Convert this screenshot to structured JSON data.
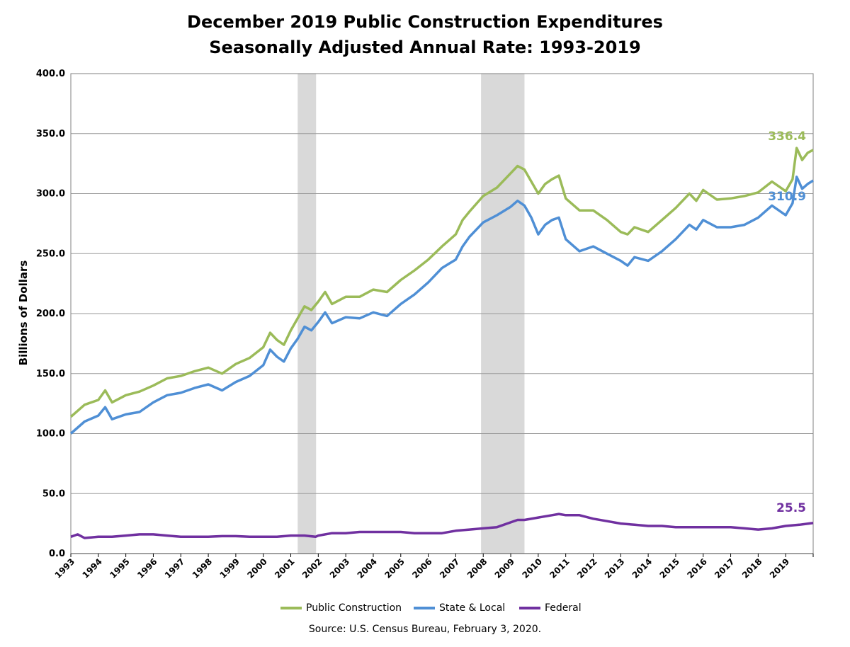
{
  "title_line1": "December 2019 Public Construction Expenditures",
  "title_line2": "Seasonally Adjusted Annual Rate: 1993-2019",
  "source": "Source: U.S. Census Bureau, February 3, 2020.",
  "colors": {
    "public_construction": "#9bbb59",
    "state_local": "#4f8fd5",
    "federal": "#7030a0",
    "recession": "#d9d9d9",
    "grid": "#9a9a9a"
  },
  "chart_data": {
    "type": "line",
    "ylabel": "Billions of Dollars",
    "xlabel": "",
    "ylim": [
      0,
      400
    ],
    "xlim": [
      1993,
      2020
    ],
    "yticks": [
      "0.0",
      "50.0",
      "100.0",
      "150.0",
      "200.0",
      "250.0",
      "300.0",
      "350.0",
      "400.0"
    ],
    "xticks": [
      "1993",
      "1994",
      "1995",
      "1996",
      "1997",
      "1998",
      "1999",
      "2000",
      "2001",
      "2002",
      "2003",
      "2004",
      "2005",
      "2006",
      "2007",
      "2008",
      "2009",
      "2010",
      "2011",
      "2012",
      "2013",
      "2014",
      "2015",
      "2016",
      "2017",
      "2018",
      "2019"
    ],
    "grid": true,
    "legend_position": "bottom",
    "recessions": [
      {
        "start": 2001.25,
        "end": 2001.92
      },
      {
        "start": 2007.92,
        "end": 2009.5
      }
    ],
    "series": [
      {
        "name": "Public Construction",
        "color_key": "public_construction",
        "end_label": "336.4",
        "points": [
          [
            1993.0,
            114
          ],
          [
            1993.5,
            124
          ],
          [
            1994.0,
            128
          ],
          [
            1994.25,
            136
          ],
          [
            1994.5,
            126
          ],
          [
            1995.0,
            132
          ],
          [
            1995.5,
            135
          ],
          [
            1996.0,
            140
          ],
          [
            1996.5,
            146
          ],
          [
            1997.0,
            148
          ],
          [
            1997.5,
            152
          ],
          [
            1998.0,
            155
          ],
          [
            1998.5,
            150
          ],
          [
            1999.0,
            158
          ],
          [
            1999.5,
            163
          ],
          [
            2000.0,
            172
          ],
          [
            2000.25,
            184
          ],
          [
            2000.5,
            178
          ],
          [
            2000.75,
            174
          ],
          [
            2001.0,
            186
          ],
          [
            2001.25,
            196
          ],
          [
            2001.5,
            206
          ],
          [
            2001.75,
            203
          ],
          [
            2002.0,
            210
          ],
          [
            2002.25,
            218
          ],
          [
            2002.5,
            208
          ],
          [
            2003.0,
            214
          ],
          [
            2003.5,
            214
          ],
          [
            2004.0,
            220
          ],
          [
            2004.5,
            218
          ],
          [
            2005.0,
            228
          ],
          [
            2005.5,
            236
          ],
          [
            2006.0,
            245
          ],
          [
            2006.5,
            256
          ],
          [
            2007.0,
            266
          ],
          [
            2007.25,
            278
          ],
          [
            2007.5,
            285
          ],
          [
            2008.0,
            298
          ],
          [
            2008.5,
            305
          ],
          [
            2009.0,
            317
          ],
          [
            2009.25,
            323
          ],
          [
            2009.5,
            320
          ],
          [
            2009.75,
            310
          ],
          [
            2010.0,
            300
          ],
          [
            2010.25,
            308
          ],
          [
            2010.5,
            312
          ],
          [
            2010.75,
            315
          ],
          [
            2011.0,
            296
          ],
          [
            2011.5,
            286
          ],
          [
            2012.0,
            286
          ],
          [
            2012.5,
            278
          ],
          [
            2013.0,
            268
          ],
          [
            2013.25,
            266
          ],
          [
            2013.5,
            272
          ],
          [
            2014.0,
            268
          ],
          [
            2014.5,
            278
          ],
          [
            2015.0,
            288
          ],
          [
            2015.5,
            300
          ],
          [
            2015.75,
            294
          ],
          [
            2016.0,
            303
          ],
          [
            2016.5,
            295
          ],
          [
            2017.0,
            296
          ],
          [
            2017.5,
            298
          ],
          [
            2018.0,
            301
          ],
          [
            2018.5,
            310
          ],
          [
            2019.0,
            302
          ],
          [
            2019.25,
            312
          ],
          [
            2019.4,
            338
          ],
          [
            2019.6,
            328
          ],
          [
            2019.8,
            334
          ],
          [
            2020.0,
            336.4
          ]
        ]
      },
      {
        "name": "State & Local",
        "color_key": "state_local",
        "end_label": "310.9",
        "points": [
          [
            1993.0,
            100
          ],
          [
            1993.5,
            110
          ],
          [
            1994.0,
            115
          ],
          [
            1994.25,
            122
          ],
          [
            1994.5,
            112
          ],
          [
            1995.0,
            116
          ],
          [
            1995.5,
            118
          ],
          [
            1996.0,
            126
          ],
          [
            1996.5,
            132
          ],
          [
            1997.0,
            134
          ],
          [
            1997.5,
            138
          ],
          [
            1998.0,
            141
          ],
          [
            1998.5,
            136
          ],
          [
            1999.0,
            143
          ],
          [
            1999.5,
            148
          ],
          [
            2000.0,
            157
          ],
          [
            2000.25,
            170
          ],
          [
            2000.5,
            164
          ],
          [
            2000.75,
            160
          ],
          [
            2001.0,
            171
          ],
          [
            2001.25,
            179
          ],
          [
            2001.5,
            189
          ],
          [
            2001.75,
            186
          ],
          [
            2002.0,
            193
          ],
          [
            2002.25,
            201
          ],
          [
            2002.5,
            192
          ],
          [
            2003.0,
            197
          ],
          [
            2003.5,
            196
          ],
          [
            2004.0,
            201
          ],
          [
            2004.5,
            198
          ],
          [
            2005.0,
            208
          ],
          [
            2005.5,
            216
          ],
          [
            2006.0,
            226
          ],
          [
            2006.5,
            238
          ],
          [
            2007.0,
            245
          ],
          [
            2007.25,
            256
          ],
          [
            2007.5,
            264
          ],
          [
            2008.0,
            276
          ],
          [
            2008.5,
            282
          ],
          [
            2009.0,
            289
          ],
          [
            2009.25,
            294
          ],
          [
            2009.5,
            290
          ],
          [
            2009.75,
            280
          ],
          [
            2010.0,
            266
          ],
          [
            2010.25,
            274
          ],
          [
            2010.5,
            278
          ],
          [
            2010.75,
            280
          ],
          [
            2011.0,
            262
          ],
          [
            2011.5,
            252
          ],
          [
            2012.0,
            256
          ],
          [
            2012.5,
            250
          ],
          [
            2013.0,
            244
          ],
          [
            2013.25,
            240
          ],
          [
            2013.5,
            247
          ],
          [
            2014.0,
            244
          ],
          [
            2014.5,
            252
          ],
          [
            2015.0,
            262
          ],
          [
            2015.5,
            274
          ],
          [
            2015.75,
            270
          ],
          [
            2016.0,
            278
          ],
          [
            2016.5,
            272
          ],
          [
            2017.0,
            272
          ],
          [
            2017.5,
            274
          ],
          [
            2018.0,
            280
          ],
          [
            2018.5,
            290
          ],
          [
            2019.0,
            282
          ],
          [
            2019.25,
            292
          ],
          [
            2019.4,
            314
          ],
          [
            2019.6,
            304
          ],
          [
            2019.8,
            308
          ],
          [
            2020.0,
            310.9
          ]
        ]
      },
      {
        "name": "Federal",
        "color_key": "federal",
        "end_label": "25.5",
        "points": [
          [
            1993.0,
            14
          ],
          [
            1993.25,
            16
          ],
          [
            1993.5,
            13
          ],
          [
            1994.0,
            14
          ],
          [
            1994.5,
            14
          ],
          [
            1995.0,
            15
          ],
          [
            1995.5,
            16
          ],
          [
            1996.0,
            16
          ],
          [
            1996.5,
            15
          ],
          [
            1997.0,
            14
          ],
          [
            1997.5,
            14
          ],
          [
            1998.0,
            14
          ],
          [
            1998.5,
            14.5
          ],
          [
            1999.0,
            14.5
          ],
          [
            1999.5,
            14
          ],
          [
            2000.0,
            14
          ],
          [
            2000.5,
            14
          ],
          [
            2001.0,
            15
          ],
          [
            2001.5,
            15
          ],
          [
            2001.9,
            14
          ],
          [
            2002.0,
            15
          ],
          [
            2002.5,
            17
          ],
          [
            2003.0,
            17
          ],
          [
            2003.5,
            18
          ],
          [
            2004.0,
            18
          ],
          [
            2004.5,
            18
          ],
          [
            2005.0,
            18
          ],
          [
            2005.5,
            17
          ],
          [
            2006.0,
            17
          ],
          [
            2006.5,
            17
          ],
          [
            2007.0,
            19
          ],
          [
            2007.5,
            20
          ],
          [
            2008.0,
            21
          ],
          [
            2008.5,
            22
          ],
          [
            2009.0,
            26
          ],
          [
            2009.25,
            28
          ],
          [
            2009.5,
            28
          ],
          [
            2010.0,
            30
          ],
          [
            2010.5,
            32
          ],
          [
            2010.75,
            33
          ],
          [
            2011.0,
            32
          ],
          [
            2011.5,
            32
          ],
          [
            2012.0,
            29
          ],
          [
            2012.5,
            27
          ],
          [
            2013.0,
            25
          ],
          [
            2013.5,
            24
          ],
          [
            2014.0,
            23
          ],
          [
            2014.5,
            23
          ],
          [
            2015.0,
            22
          ],
          [
            2015.5,
            22
          ],
          [
            2016.0,
            22
          ],
          [
            2016.5,
            22
          ],
          [
            2017.0,
            22
          ],
          [
            2017.5,
            21
          ],
          [
            2018.0,
            20
          ],
          [
            2018.5,
            21
          ],
          [
            2019.0,
            23
          ],
          [
            2019.5,
            24
          ],
          [
            2020.0,
            25.5
          ]
        ]
      }
    ]
  }
}
